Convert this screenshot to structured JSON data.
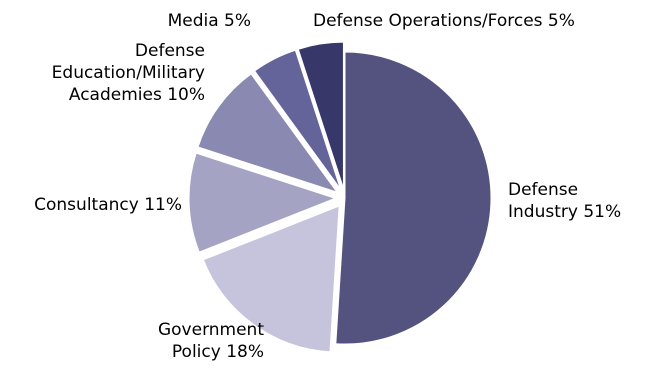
{
  "chart_data": {
    "type": "pie",
    "title": "",
    "slices": [
      {
        "name": "Defense Industry",
        "label_lines": [
          "Defense",
          "Industry 51%"
        ],
        "value": 51,
        "color": "#54527f"
      },
      {
        "name": "Government Policy",
        "label_lines": [
          "Government",
          "Policy 18%"
        ],
        "value": 18,
        "color": "#c5c4dc"
      },
      {
        "name": "Consultancy",
        "label_lines": [
          "Consultancy 11%"
        ],
        "value": 11,
        "color": "#a4a3c4"
      },
      {
        "name": "Defense Education/Military Academies",
        "label_lines": [
          "Defense",
          "Education/Military",
          "Academies 10%"
        ],
        "value": 10,
        "color": "#8a89b1"
      },
      {
        "name": "Media",
        "label_lines": [
          "Media 5%"
        ],
        "value": 5,
        "color": "#64639a"
      },
      {
        "name": "Defense Operations/Forces",
        "label_lines": [
          "Defense Operations/Forces 5%"
        ],
        "value": 5,
        "color": "#38376a"
      }
    ],
    "legend": "none",
    "start": "12 o'clock, clockwise",
    "exploded": true
  }
}
